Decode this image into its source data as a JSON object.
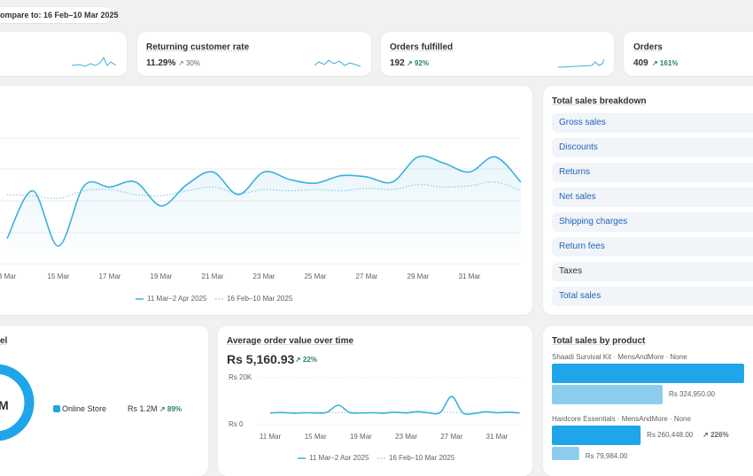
{
  "compare": "ompare to: 16 Feb–10 Mar 2025",
  "metrics": [
    {
      "label": "Returning customer rate",
      "value": "11.29%",
      "change": "↗ 30%"
    },
    {
      "label": "Orders fulfilled",
      "value": "192",
      "change": "↗ 92%"
    },
    {
      "label": "Orders",
      "value": "409",
      "change": "↗ 161%"
    }
  ],
  "breakdown": {
    "title": "Total sales breakdown",
    "items": [
      "Gross sales",
      "Discounts",
      "Returns",
      "Net sales",
      "Shipping charges",
      "Return fees",
      "Taxes",
      "Total sales"
    ]
  },
  "channel": {
    "title": "el",
    "center": "M",
    "legend": "Online Store",
    "value": "Rs 1.2M",
    "change": "↗ 89%"
  },
  "aov": {
    "title": "Average order value over time",
    "value": "Rs 5,160.93",
    "change": "↗ 22%"
  },
  "products_title": "Total sales by product",
  "chart_data": [
    {
      "type": "line",
      "ylim": [
        0,
        100
      ],
      "categories": [
        "3 Mar",
        null,
        "15 Mar",
        null,
        "17 Mar",
        null,
        "19 Mar",
        null,
        "21 Mar",
        null,
        "23 Mar",
        null,
        "25 Mar",
        null,
        "27 Mar",
        null,
        "29 Mar",
        null,
        "31 Mar",
        null,
        null
      ],
      "series": [
        {
          "name": "11 Mar–2 Apr 2025",
          "color": "#3bb1dc",
          "values": [
            20,
            58,
            14,
            62,
            61,
            65,
            46,
            63,
            73,
            55,
            73,
            67,
            64,
            70,
            69,
            65,
            85,
            80,
            73,
            85,
            65
          ]
        },
        {
          "name": "16 Feb–10 Mar 2025",
          "color": "#8fd3ec",
          "values": [
            55,
            54,
            52,
            58,
            59,
            55,
            54,
            58,
            61,
            56,
            59,
            58,
            59,
            58,
            60,
            59,
            63,
            61,
            62,
            65,
            58
          ]
        }
      ]
    },
    {
      "type": "line",
      "ylim": [
        0,
        20000
      ],
      "yticks": [
        {
          "value": 20000,
          "label": "Rs 20K"
        },
        {
          "value": 0,
          "label": "Rs 0"
        }
      ],
      "categories": [
        "11 Mar",
        null,
        null,
        null,
        "15 Mar",
        null,
        null,
        null,
        "19 Mar",
        null,
        null,
        null,
        "23 Mar",
        null,
        null,
        null,
        "27 Mar",
        null,
        null,
        null,
        "31 Mar",
        null,
        null
      ],
      "series": [
        {
          "name": "11 Mar–2 Apr 2025",
          "color": "#3bb1dc",
          "values": [
            5000,
            5200,
            4900,
            5100,
            5000,
            5300,
            8300,
            5200,
            5000,
            5100,
            4900,
            5300,
            5000,
            5600,
            5000,
            5200,
            12000,
            5000,
            4800,
            5500,
            5100,
            5300,
            5000
          ]
        },
        {
          "name": "16 Feb–10 Mar 2025",
          "color": "#8fd3ec",
          "values": [
            5200,
            5100,
            5300,
            5000,
            5400,
            5200,
            5100,
            5300,
            5200,
            5000,
            5400,
            5200,
            5300,
            5100,
            5200,
            5400,
            5300,
            5100,
            5200,
            5300,
            5200,
            5100,
            5300
          ]
        }
      ]
    },
    {
      "type": "hbar",
      "xlim": [
        0,
        650000
      ],
      "categories": [
        "Shaadi Survival Kit · MensAndMore · None",
        "Hardcore Essentials · MensAndMore · None"
      ],
      "changes": [
        null,
        "↗ 226%"
      ],
      "series": [
        {
          "color": "#1ea5ea",
          "values": [
            564000,
            260448
          ],
          "value_labels": [
            null,
            "Rs 260,448.00"
          ]
        },
        {
          "color": "#8ccdee",
          "values": [
            324950,
            79984
          ],
          "value_labels": [
            "Rs 324,950.00",
            "Rs 79,984.00"
          ]
        }
      ]
    }
  ]
}
